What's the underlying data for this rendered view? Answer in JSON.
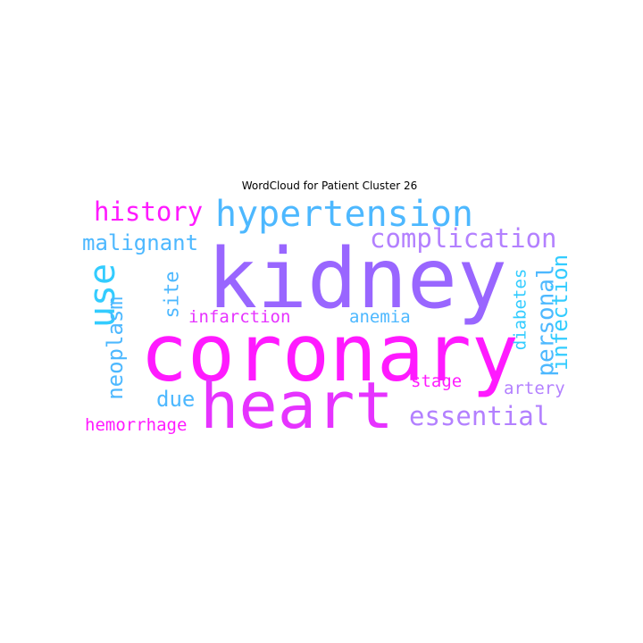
{
  "title": "WordCloud for Patient Cluster 26",
  "words": {
    "kidney": "kidney",
    "coronary": "coronary",
    "heart": "heart",
    "hypertension": "hypertension",
    "complication": "complication",
    "history": "history",
    "malignant": "malignant",
    "use": "use",
    "neoplasm": "neoplasm",
    "site": "site",
    "infarction": "infarction",
    "anemia": "anemia",
    "personal": "personal",
    "infection": "infection",
    "diabetes": "diabetes",
    "essential": "essential",
    "stage": "stage",
    "artery": "artery",
    "due": "due",
    "hemorrhage": "hemorrhage"
  },
  "colors": {
    "magenta": "#ff1aff",
    "purple": "#9966ff",
    "blue": "#4db8ff",
    "cyan": "#33ccff",
    "lavender": "#b380ff",
    "pink": "#e633ff"
  }
}
